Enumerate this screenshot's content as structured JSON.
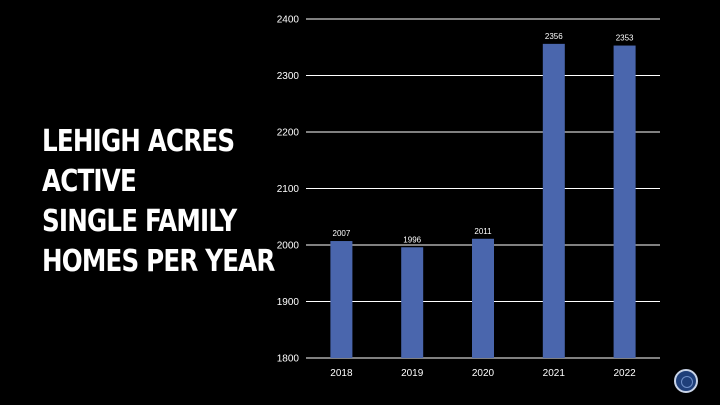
{
  "title": {
    "lines": [
      "LEHIGH ACRES",
      "ACTIVE",
      "SINGLE FAMILY",
      "HOMES PER YEAR"
    ]
  },
  "logo_icon": "globe-icon",
  "colors": {
    "background": "#000000",
    "bar": "#4a66ad",
    "text": "#ffffff",
    "grid": "#ffffff"
  },
  "chart_data": {
    "type": "bar",
    "categories": [
      "2018",
      "2019",
      "2020",
      "2021",
      "2022"
    ],
    "values": [
      2007,
      1996,
      2011,
      2356,
      2353
    ],
    "data_labels": [
      "2007",
      "1996",
      "2011",
      "2356",
      "2353"
    ],
    "ylim": [
      1800,
      2400
    ],
    "yticks": [
      1800,
      1900,
      2000,
      2100,
      2200,
      2300,
      2400
    ],
    "ytick_labels": [
      "1800",
      "1900",
      "2000",
      "2100",
      "2200",
      "2300",
      "2400"
    ],
    "grid": true,
    "legend": "none"
  }
}
